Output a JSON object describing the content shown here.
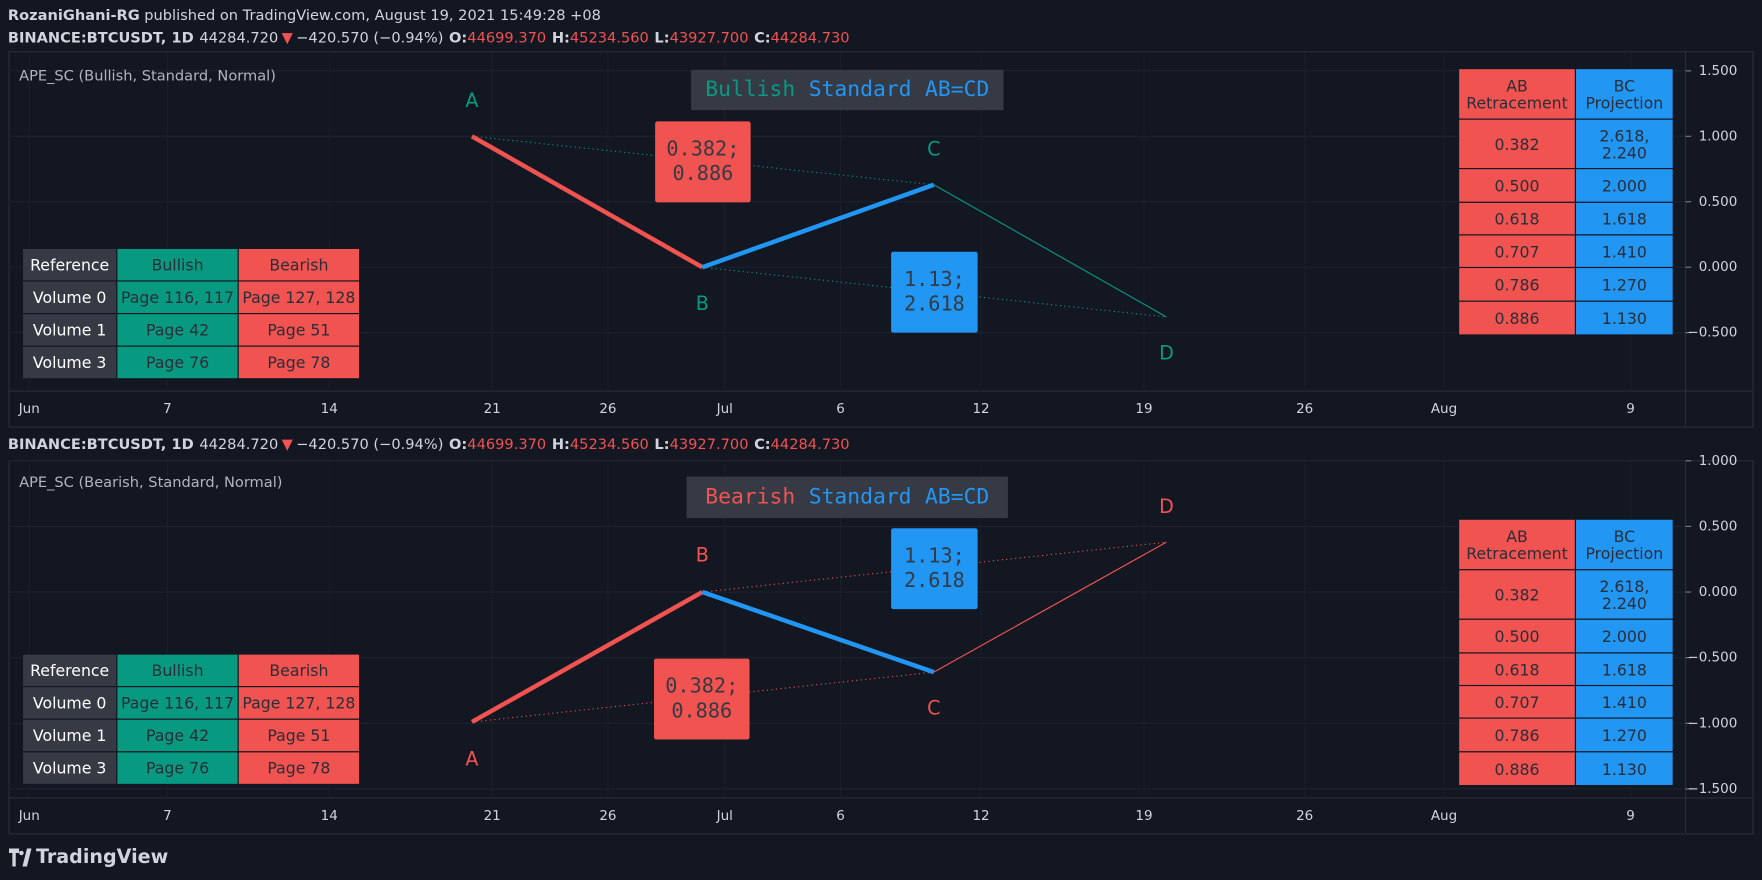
{
  "header": {
    "publisher": "RozaniGhani-RG",
    "published": "published on TradingView.com, August 19, 2021 15:49:28 +08"
  },
  "panels": [
    {
      "symbol": "BINANCE:BTCUSDT, 1D",
      "last": "44284.720",
      "arrow": "▼",
      "change": "−420.570 (−0.94%)",
      "ohlc": [
        [
          "O:",
          "44699.370"
        ],
        [
          "H:",
          "45234.560"
        ],
        [
          "L:",
          "43927.700"
        ],
        [
          "C:",
          "44284.730"
        ]
      ],
      "indicator": "APE_SC (Bullish, Standard, Normal)",
      "title": [
        "Bullish",
        "Standard",
        "AB=CD"
      ],
      "pattern_color": "#089981",
      "yticks": [
        {
          "value": 1.5,
          "label": "1.500"
        },
        {
          "value": 1,
          "label": "1.000"
        },
        {
          "value": 0.5,
          "label": "0.500"
        },
        {
          "value": 0,
          "label": "0.000"
        },
        {
          "value": -0.5,
          "label": "−0.500"
        }
      ],
      "points": [
        {
          "label": "A",
          "value": 1.0
        },
        {
          "label": "B",
          "value": 0.0
        },
        {
          "label": "C",
          "value": 0.63
        },
        {
          "label": "D",
          "value": -0.38
        }
      ],
      "ratios": {
        "ab": [
          "0.382;",
          "0.886"
        ],
        "bc": [
          "1.13;",
          "2.618"
        ]
      },
      "reference": {
        "header": [
          "Reference",
          "Bullish",
          "Bearish"
        ],
        "rows": [
          [
            "Volume 0",
            "Page 116, 117",
            "Page 127, 128"
          ],
          [
            "Volume 1",
            "Page 42",
            "Page 51"
          ],
          [
            "Volume 3",
            "Page 76",
            "Page 78"
          ]
        ]
      },
      "ratio_table": {
        "header": [
          [
            "AB",
            "Retracement"
          ],
          [
            "BC",
            "Projection"
          ]
        ],
        "rows": [
          [
            [
              "0.382"
            ],
            [
              "2.618,",
              "2.240"
            ]
          ],
          [
            [
              "0.500"
            ],
            [
              "2.000"
            ]
          ],
          [
            [
              "0.618"
            ],
            [
              "1.618"
            ]
          ],
          [
            [
              "0.707"
            ],
            [
              "1.410"
            ]
          ],
          [
            [
              "0.786"
            ],
            [
              "1.270"
            ]
          ],
          [
            [
              "0.886"
            ],
            [
              "1.130"
            ]
          ]
        ]
      },
      "xlabels": [
        "Jun",
        "7",
        "14",
        "21",
        "26",
        "Jul",
        "6",
        "12",
        "19",
        "26",
        "Aug",
        "9"
      ]
    },
    {
      "symbol": "BINANCE:BTCUSDT, 1D",
      "last": "44284.720",
      "arrow": "▼",
      "change": "−420.570 (−0.94%)",
      "ohlc": [
        [
          "O:",
          "44699.370"
        ],
        [
          "H:",
          "45234.560"
        ],
        [
          "L:",
          "43927.700"
        ],
        [
          "C:",
          "44284.730"
        ]
      ],
      "indicator": "APE_SC (Bearish, Standard, Normal)",
      "title": [
        "Bearish",
        "Standard",
        "AB=CD"
      ],
      "pattern_color": "#f05350",
      "yticks": [
        {
          "value": 1,
          "label": "1.000"
        },
        {
          "value": 0.5,
          "label": "0.500"
        },
        {
          "value": 0,
          "label": "0.000"
        },
        {
          "value": -0.5,
          "label": "−0.500"
        },
        {
          "value": -1,
          "label": "−1.000"
        },
        {
          "value": -1.5,
          "label": "−1.500"
        }
      ],
      "points": [
        {
          "label": "A",
          "value": -0.99
        },
        {
          "label": "B",
          "value": 0.0
        },
        {
          "label": "C",
          "value": -0.61
        },
        {
          "label": "D",
          "value": 0.38
        }
      ],
      "ratios": {
        "ab": [
          "0.382;",
          "0.886"
        ],
        "bc": [
          "1.13;",
          "2.618"
        ]
      },
      "reference": {
        "header": [
          "Reference",
          "Bullish",
          "Bearish"
        ],
        "rows": [
          [
            "Volume 0",
            "Page 116, 117",
            "Page 127, 128"
          ],
          [
            "Volume 1",
            "Page 42",
            "Page 51"
          ],
          [
            "Volume 3",
            "Page 76",
            "Page 78"
          ]
        ]
      },
      "ratio_table": {
        "header": [
          [
            "AB",
            "Retracement"
          ],
          [
            "BC",
            "Projection"
          ]
        ],
        "rows": [
          [
            [
              "0.382"
            ],
            [
              "2.618,",
              "2.240"
            ]
          ],
          [
            [
              "0.500"
            ],
            [
              "2.000"
            ]
          ],
          [
            [
              "0.618"
            ],
            [
              "1.618"
            ]
          ],
          [
            [
              "0.707"
            ],
            [
              "1.410"
            ]
          ],
          [
            [
              "0.786"
            ],
            [
              "1.270"
            ]
          ],
          [
            [
              "0.886"
            ],
            [
              "1.130"
            ]
          ]
        ]
      },
      "xlabels": [
        "Jun",
        "7",
        "14",
        "21",
        "26",
        "Jul",
        "6",
        "12",
        "19",
        "26",
        "Aug",
        "9"
      ]
    }
  ],
  "footer": "TradingView"
}
